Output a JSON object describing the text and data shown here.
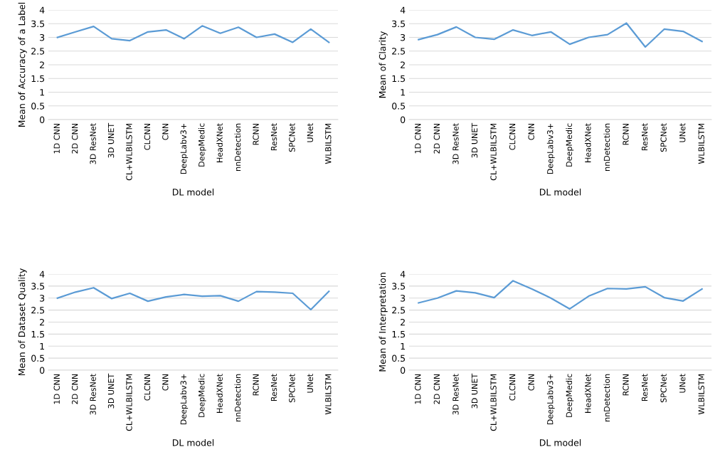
{
  "chart_data": [
    {
      "type": "line",
      "ylabel": "Mean of Accuracy of a Label",
      "xlabel": "DL model",
      "categories": [
        "1D CNN",
        "2D CNN",
        "3D ResNet",
        "3D UNET",
        "CL+WLBILSTM",
        "CLCNN",
        "CNN",
        "DeepLabv3+",
        "DeepMedic",
        "HeadXNet",
        "nnDetection",
        "RCNN",
        "ResNet",
        "SPCNet",
        "UNet",
        "WLBILSTM"
      ],
      "series": [
        {
          "color": "#5b9bd5",
          "values": [
            3.0,
            3.2,
            3.4,
            2.95,
            2.88,
            3.2,
            3.27,
            2.95,
            3.42,
            3.15,
            3.37,
            3.0,
            3.12,
            2.82,
            3.3,
            2.82
          ]
        }
      ],
      "ylim": [
        0,
        4
      ],
      "yticks": [
        0,
        0.5,
        1,
        1.5,
        2,
        2.5,
        3,
        3.5,
        4
      ],
      "grid": "y",
      "legend": false,
      "marker": "none",
      "line_style": "solid"
    },
    {
      "type": "line",
      "ylabel": "Mean of Clarity",
      "xlabel": "DL model",
      "categories": [
        "1D CNN",
        "2D CNN",
        "3D ResNet",
        "3D UNET",
        "CL+WLBILSTM",
        "CLCNN",
        "CNN",
        "DeepLabv3+",
        "DeepMedic",
        "HeadXNet",
        "nnDetection",
        "RCNN",
        "ResNet",
        "SPCNet",
        "UNet",
        "WLBILSTM"
      ],
      "series": [
        {
          "color": "#5b9bd5",
          "values": [
            2.92,
            3.1,
            3.38,
            3.0,
            2.93,
            3.27,
            3.07,
            3.2,
            2.75,
            3.0,
            3.1,
            3.52,
            2.65,
            3.3,
            3.22,
            2.85
          ]
        }
      ],
      "ylim": [
        0,
        4
      ],
      "yticks": [
        0,
        0.5,
        1,
        1.5,
        2,
        2.5,
        3,
        3.5,
        4
      ],
      "grid": "y",
      "legend": false,
      "marker": "none",
      "line_style": "solid"
    },
    {
      "type": "line",
      "ylabel": "Mean of Dataset Quality",
      "xlabel": "DL model",
      "categories": [
        "1D CNN",
        "2D CNN",
        "3D ResNet",
        "3D UNET",
        "CL+WLBILSTM",
        "CLCNN",
        "CNN",
        "DeepLabv3+",
        "DeepMedic",
        "HeadXNet",
        "nnDetection",
        "RCNN",
        "ResNet",
        "SPCNet",
        "UNet",
        "WLBILSTM"
      ],
      "series": [
        {
          "color": "#5b9bd5",
          "values": [
            3.0,
            3.25,
            3.43,
            2.98,
            3.2,
            2.87,
            3.05,
            3.15,
            3.08,
            3.1,
            2.87,
            3.27,
            3.25,
            3.2,
            2.52,
            3.28
          ]
        }
      ],
      "ylim": [
        0,
        4
      ],
      "yticks": [
        0,
        0.5,
        1,
        1.5,
        2,
        2.5,
        3,
        3.5,
        4
      ],
      "grid": "y",
      "legend": false,
      "marker": "none",
      "line_style": "solid"
    },
    {
      "type": "line",
      "ylabel": "Mean of Interpretation",
      "xlabel": "DL model",
      "categories": [
        "1D CNN",
        "2D CNN",
        "3D ResNet",
        "3D UNET",
        "CL+WLBILSTM",
        "CLCNN",
        "CNN",
        "DeepLabv3+",
        "DeepMedic",
        "HeadXNet",
        "nnDetection",
        "RCNN",
        "ResNet",
        "SPCNet",
        "UNet",
        "WLBILSTM"
      ],
      "series": [
        {
          "color": "#5b9bd5",
          "values": [
            2.8,
            3.0,
            3.3,
            3.22,
            3.02,
            3.72,
            3.38,
            3.0,
            2.55,
            3.08,
            3.4,
            3.38,
            3.47,
            3.02,
            2.88,
            3.38
          ]
        }
      ],
      "ylim": [
        0,
        4
      ],
      "yticks": [
        0,
        0.5,
        1,
        1.5,
        2,
        2.5,
        3,
        3.5,
        4
      ],
      "grid": "y",
      "legend": false,
      "marker": "none",
      "line_style": "solid"
    }
  ]
}
